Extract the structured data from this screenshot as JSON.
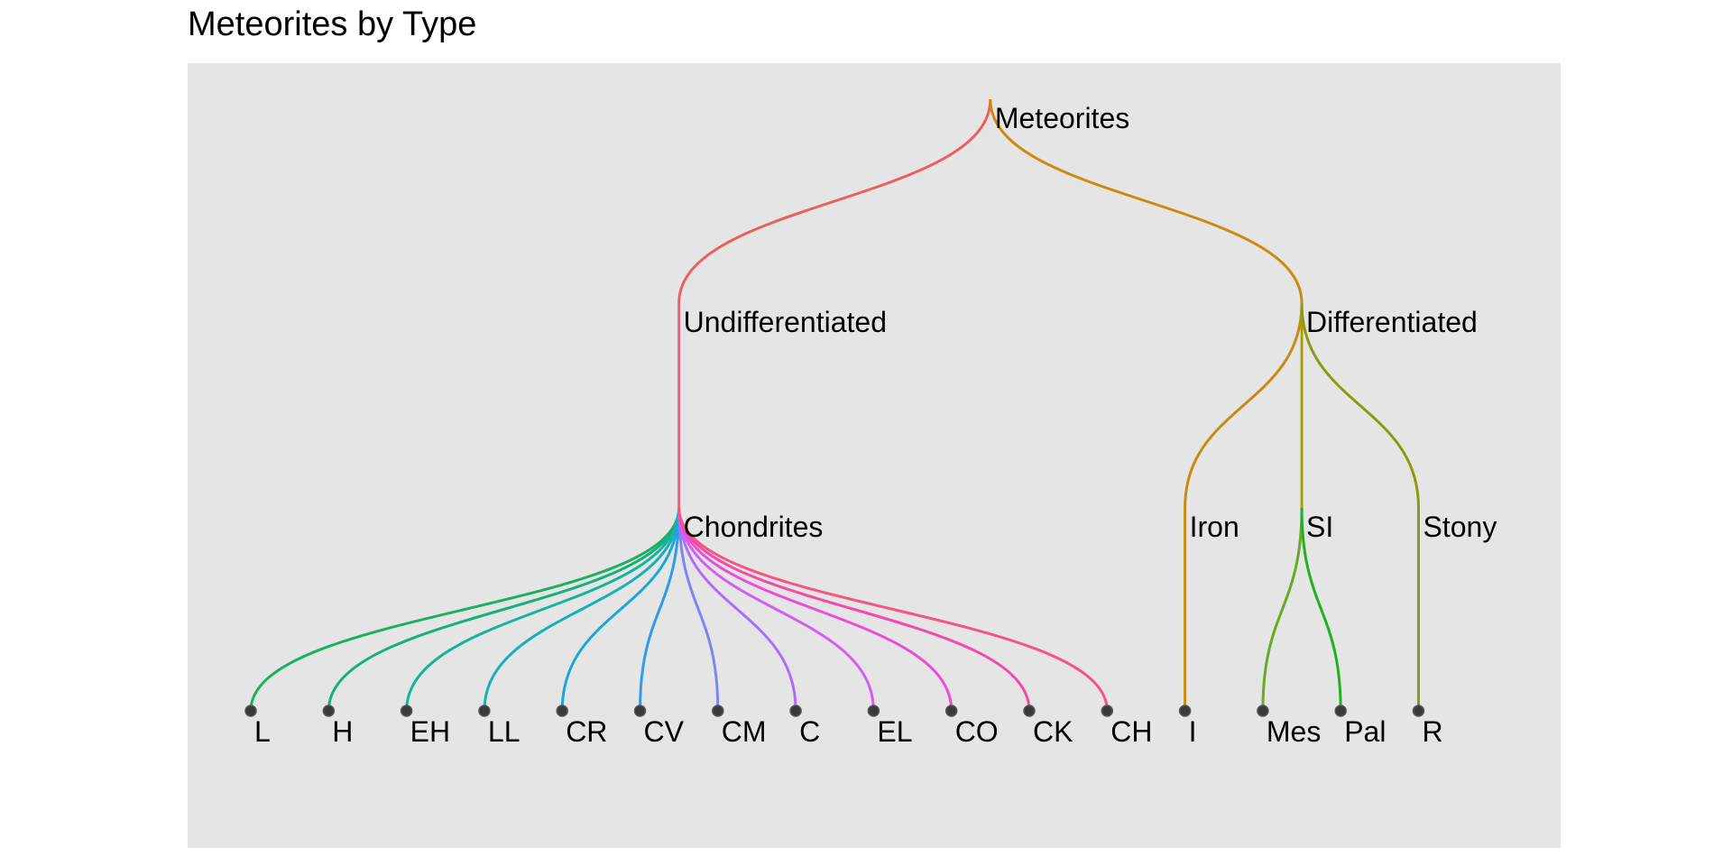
{
  "title": "Meteorites by Type",
  "colors": {
    "panel_bg": "#e5e5e5",
    "leaf_point": "#3a3a3a"
  },
  "tree": {
    "name": "Meteorites",
    "color": "#e8722c",
    "children": [
      {
        "name": "Undifferentiated",
        "color": "#ec5f5f",
        "children": [
          {
            "name": "Chondrites",
            "color": "#f0607a",
            "children": [
              {
                "name": "L",
                "color": "#1ab060"
              },
              {
                "name": "H",
                "color": "#17b07a"
              },
              {
                "name": "EH",
                "color": "#14b39a"
              },
              {
                "name": "LL",
                "color": "#18b0b8"
              },
              {
                "name": "CR",
                "color": "#1aa8d4"
              },
              {
                "name": "CV",
                "color": "#2e9ce8"
              },
              {
                "name": "CM",
                "color": "#7a86f5"
              },
              {
                "name": "C",
                "color": "#ad6ef5"
              },
              {
                "name": "EL",
                "color": "#d35ff0"
              },
              {
                "name": "CO",
                "color": "#e94fd6"
              },
              {
                "name": "CK",
                "color": "#f54aa8"
              },
              {
                "name": "CH",
                "color": "#f55484"
              }
            ]
          }
        ]
      },
      {
        "name": "Differentiated",
        "color": "#cc8a10",
        "children": [
          {
            "name": "Iron",
            "color": "#c98a12",
            "children": [
              {
                "name": "I",
                "color": "#c98a12"
              }
            ]
          },
          {
            "name": "SI",
            "color": "#a8a010",
            "children": [
              {
                "name": "Mes",
                "color": "#6aaa22"
              },
              {
                "name": "Pal",
                "color": "#20b020"
              }
            ]
          },
          {
            "name": "Stony",
            "color": "#8c9a10",
            "children": [
              {
                "name": "R",
                "color": "#8c9a10"
              }
            ]
          }
        ]
      }
    ]
  }
}
